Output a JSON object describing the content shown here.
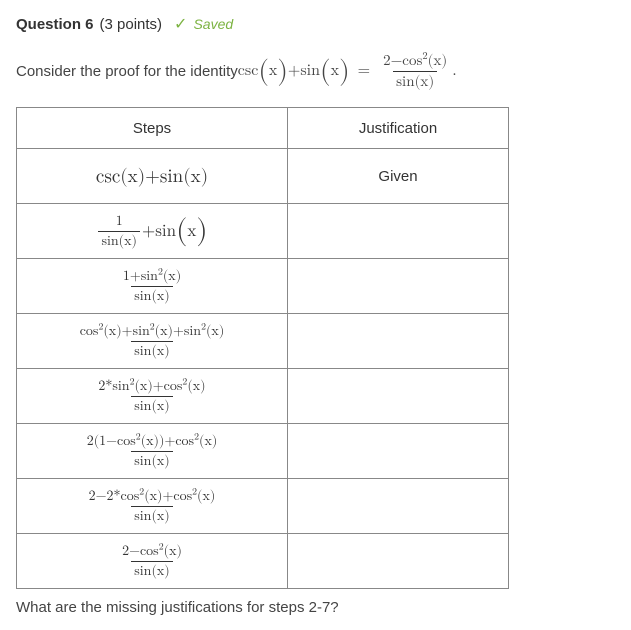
{
  "header": {
    "question_label": "Question 6",
    "points_label": "(3 points)",
    "checkmark": "✓",
    "saved_label": "Saved"
  },
  "prompt_prefix": "Consider the proof for the identity ",
  "table": {
    "col_steps": "Steps",
    "col_just": "Justification",
    "rows": [
      {
        "just": "Given"
      },
      {
        "just": ""
      },
      {
        "just": ""
      },
      {
        "just": ""
      },
      {
        "just": ""
      },
      {
        "just": ""
      },
      {
        "just": ""
      },
      {
        "just": ""
      }
    ]
  },
  "footer_text": "What are the missing justifications for steps 2-7?",
  "styling": {
    "border_color": "#888888",
    "text_color": "#333333",
    "saved_color": "#7cb342",
    "background_color": "#ffffff"
  },
  "m": {
    "csc": "csc",
    "sin": "sin",
    "cos": "cos",
    "x": "x",
    "one": "1",
    "two": "2",
    "sq": "2",
    "plus": " + ",
    "minus": "−",
    "eq": " = ",
    "star": "*",
    "dot": "."
  }
}
